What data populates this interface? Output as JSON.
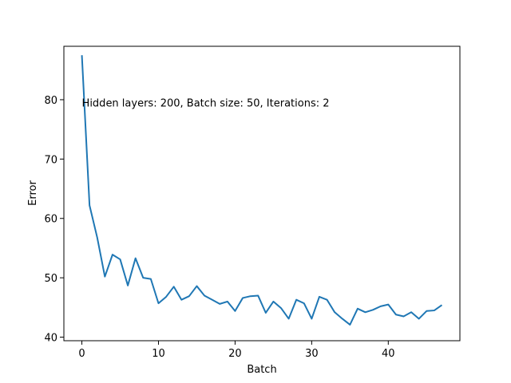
{
  "chart_data": {
    "type": "line",
    "title": "",
    "xlabel": "Batch",
    "ylabel": "Error",
    "annotation": "Hidden layers: 200, Batch size: 50, Iterations: 2",
    "xlim": [
      -2.35,
      49.35
    ],
    "ylim": [
      39.4,
      89.0
    ],
    "xticks": [
      0,
      10,
      20,
      30,
      40
    ],
    "yticks": [
      40,
      50,
      60,
      70,
      80
    ],
    "grid": false,
    "line_color": "#1f77b4",
    "series": [
      {
        "x": [
          0,
          1,
          2,
          3,
          4,
          5,
          6,
          7,
          8,
          9,
          10,
          11,
          12,
          13,
          14,
          15,
          16,
          17,
          18,
          19,
          20,
          21,
          22,
          23,
          24,
          25,
          26,
          27,
          28,
          29,
          30,
          31,
          32,
          33,
          34,
          35,
          36,
          37,
          38,
          39,
          40,
          41,
          42,
          43,
          44,
          45,
          46,
          47
        ],
        "values": [
          87.5,
          62.2,
          56.8,
          50.2,
          53.9,
          53.1,
          48.7,
          53.3,
          50.0,
          49.8,
          45.7,
          46.8,
          48.5,
          46.3,
          46.9,
          48.6,
          47.0,
          46.3,
          45.6,
          46.0,
          44.4,
          46.6,
          46.9,
          47.0,
          44.1,
          46.0,
          44.9,
          43.1,
          46.3,
          45.7,
          43.1,
          46.8,
          46.3,
          44.2,
          43.1,
          42.1,
          44.8,
          44.2,
          44.6,
          45.2,
          45.5,
          43.8,
          43.5,
          44.2,
          43.1,
          44.4,
          44.5,
          45.4
        ]
      }
    ]
  }
}
